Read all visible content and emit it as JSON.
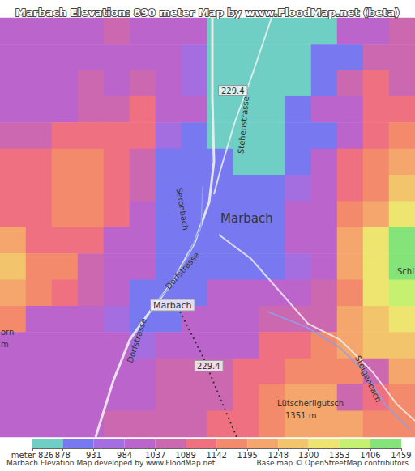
{
  "chart_data": {
    "type": "heatmap",
    "title": "Marbach Elevation: 890 meter Map by www.FloodMap.net (beta)",
    "tick_labels": false,
    "cells": [
      [
        1010,
        1010,
        1010,
        1010,
        1060,
        1010,
        1010,
        1010,
        850,
        850,
        850,
        850,
        850,
        1010,
        1010,
        1060
      ],
      [
        1010,
        1010,
        1010,
        1010,
        1010,
        1010,
        1010,
        960,
        850,
        850,
        850,
        850,
        905,
        905,
        1060,
        1060
      ],
      [
        1010,
        1010,
        1010,
        1060,
        1010,
        1060,
        1010,
        960,
        850,
        850,
        850,
        850,
        905,
        1060,
        1115,
        1060
      ],
      [
        1010,
        1010,
        1010,
        1060,
        1060,
        1115,
        1010,
        1010,
        850,
        850,
        850,
        905,
        1010,
        1010,
        1115,
        1115
      ],
      [
        1060,
        1060,
        1115,
        1115,
        1115,
        1115,
        960,
        905,
        850,
        850,
        850,
        905,
        905,
        1010,
        1115,
        1170
      ],
      [
        1115,
        1115,
        1170,
        1170,
        1115,
        1060,
        905,
        905,
        905,
        850,
        850,
        905,
        1010,
        1115,
        1170,
        1220
      ],
      [
        1115,
        1115,
        1170,
        1170,
        1115,
        1060,
        905,
        905,
        905,
        905,
        905,
        960,
        1010,
        1115,
        1170,
        1275
      ],
      [
        1115,
        1115,
        1170,
        1170,
        1115,
        1010,
        905,
        905,
        905,
        905,
        905,
        1010,
        1010,
        1170,
        1220,
        1325
      ],
      [
        1220,
        1115,
        1115,
        1115,
        1010,
        1010,
        905,
        905,
        905,
        905,
        905,
        1010,
        1010,
        1220,
        1325,
        1430
      ],
      [
        1275,
        1170,
        1170,
        1060,
        1010,
        1010,
        905,
        905,
        905,
        905,
        905,
        960,
        1010,
        1220,
        1325,
        1430
      ],
      [
        1220,
        1170,
        1115,
        1060,
        1010,
        905,
        905,
        905,
        1010,
        1010,
        1010,
        1010,
        1060,
        1170,
        1325,
        1380
      ],
      [
        1170,
        1010,
        1010,
        1010,
        960,
        905,
        905,
        1010,
        1010,
        1010,
        1060,
        1060,
        1060,
        1220,
        1275,
        1325
      ],
      [
        1010,
        1010,
        1010,
        1010,
        1010,
        960,
        1010,
        1010,
        1010,
        1010,
        1115,
        1115,
        1170,
        1220,
        1275,
        1275
      ],
      [
        1010,
        1010,
        1010,
        1010,
        1010,
        1010,
        1060,
        1060,
        1060,
        1115,
        1115,
        1170,
        1170,
        1170,
        1060,
        1220
      ],
      [
        1010,
        1010,
        1010,
        1010,
        1010,
        1010,
        1060,
        1060,
        1060,
        1115,
        1170,
        1220,
        1220,
        1060,
        1115,
        1170
      ],
      [
        1010,
        1010,
        1010,
        1010,
        1060,
        1060,
        1060,
        1060,
        1115,
        1115,
        1170,
        1220,
        1220,
        1220,
        1170,
        1170
      ]
    ],
    "colorbar": {
      "range": [
        826,
        1459
      ],
      "ticks": [
        {
          "value": 826,
          "label": "meter 826"
        },
        878,
        931,
        984,
        1037,
        1089,
        1142,
        1195,
        1248,
        1300,
        1353,
        1406,
        1459
      ],
      "colors": [
        "#6fcfc4",
        "#7878f0",
        "#a46ee0",
        "#bb64cc",
        "#cc68b0",
        "#ef7080",
        "#f38a6c",
        "#f4a66c",
        "#f2c46c",
        "#eee470",
        "#c6f070",
        "#84e47a"
      ]
    },
    "annotations": [
      "Stehenstrasse",
      "229.4",
      "Seronbach",
      "Marbach",
      "Dorfstrasse",
      "Marbach",
      "229.4",
      "Dorfstrasse",
      "Steigenbach",
      "Lütscherligutsch",
      "1351 m",
      "Schi",
      "orn",
      "m"
    ],
    "footer": [
      "Marbach Elevation Map developed by www.FloodMap.net",
      "Base map © OpenStreetMap contributors"
    ]
  }
}
